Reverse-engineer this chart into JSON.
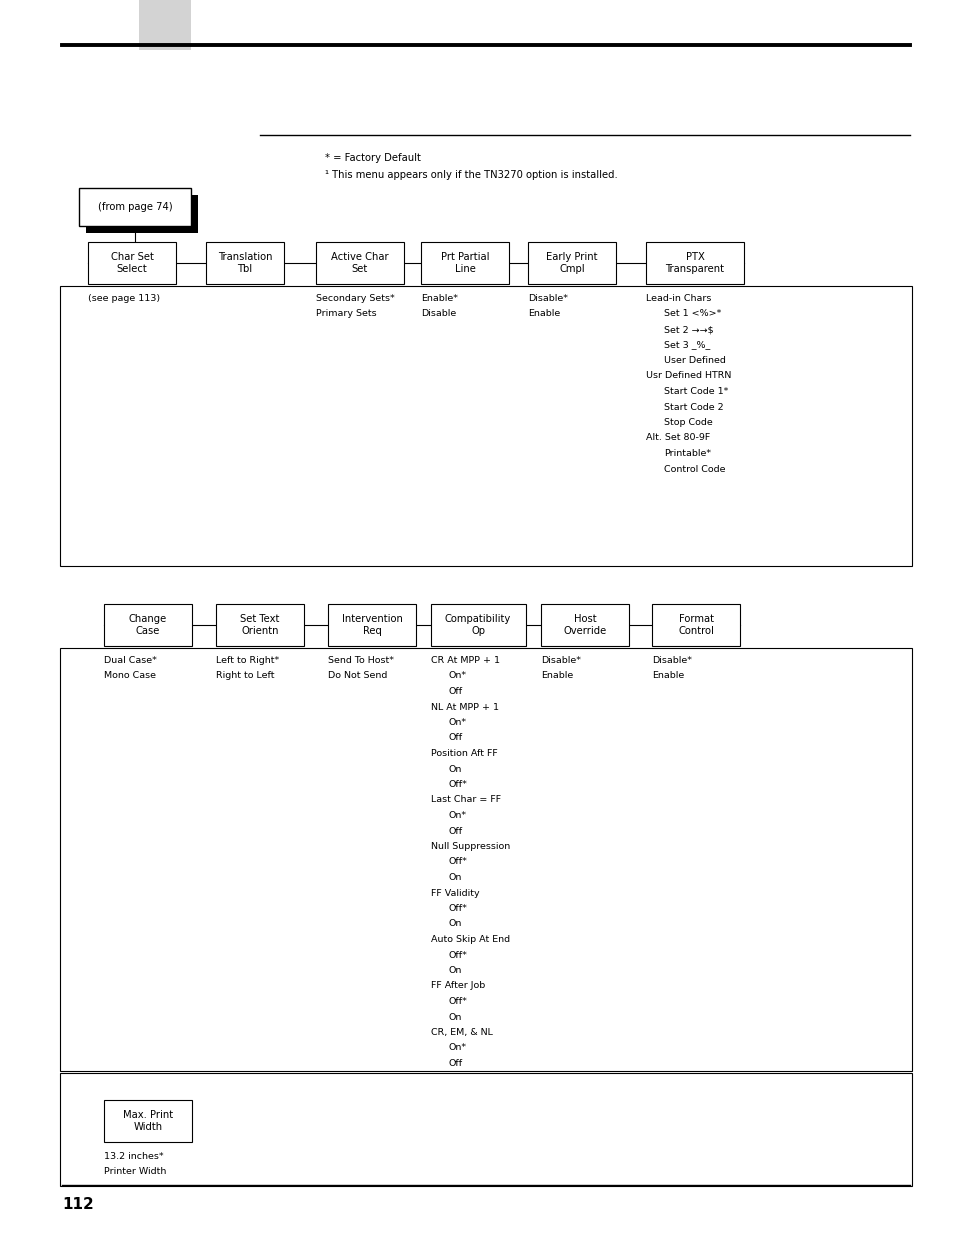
{
  "page_number": "112",
  "bg_color": "#ffffff",
  "note1": "* = Factory Default",
  "note2": "¹ This menu appears only if the TN3270 option is installed.",
  "from_page_text": "(from page 74)",
  "row1_labels": [
    "Char Set\nSelect",
    "Translation\nTbl",
    "Active Char\nSet",
    "Prt Partial\nLine",
    "Early Print\nCmpl",
    "PTX\nTransparent"
  ],
  "row2_labels": [
    "Change\nCase",
    "Set Text\nOrientn",
    "Intervention\nReq",
    "Compatibility\nOp",
    "Host\nOverride",
    "Format\nControl"
  ],
  "row3_labels": [
    "Max. Print\nWidth"
  ],
  "ptx_items": [
    "Lead-in Chars",
    "Set 1 <%>*",
    "Set 2 →→$",
    "Set 3 _%_",
    "User Defined",
    "Usr Defined HTRN",
    "Start Code 1*",
    "Start Code 2",
    "Stop Code",
    "Alt. Set 80-9F",
    "Printable*",
    "Control Code"
  ],
  "compat_items": [
    "CR At MPP + 1",
    "On*",
    "Off",
    "NL At MPP + 1",
    "On*",
    "Off",
    "Position Aft FF",
    "On",
    "Off*",
    "Last Char = FF",
    "On*",
    "Off",
    "Null Suppression",
    "Off*",
    "On",
    "FF Validity",
    "Off*",
    "On",
    "Auto Skip At End",
    "Off*",
    "On",
    "FF After Job",
    "Off*",
    "On",
    "CR, EM, & NL",
    "On*",
    "Off"
  ]
}
